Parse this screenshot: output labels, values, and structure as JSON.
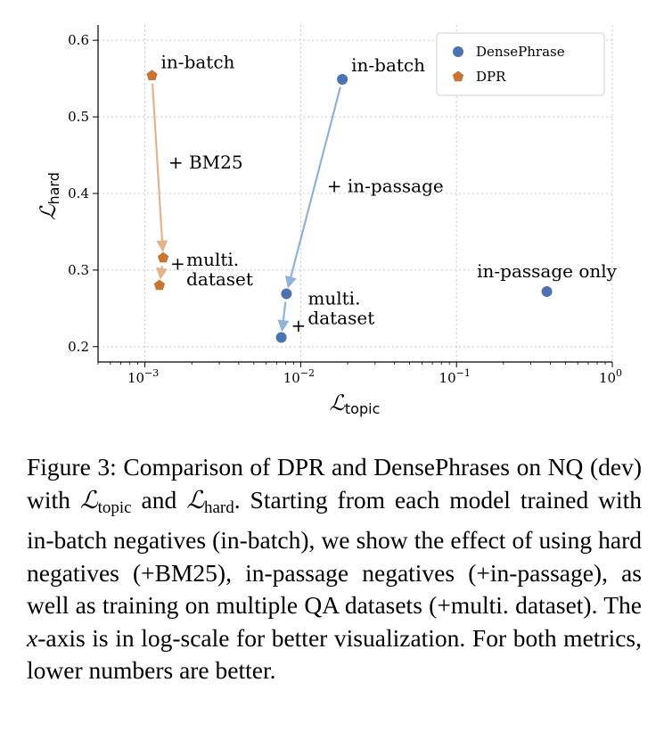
{
  "chart_data": {
    "type": "scatter",
    "xscale": "log",
    "xlim": [
      0.0005,
      1.0
    ],
    "ylim": [
      0.18,
      0.62
    ],
    "x_ticks": [
      {
        "value": 0.001,
        "base": "10",
        "exp": "−3"
      },
      {
        "value": 0.01,
        "base": "10",
        "exp": "−2"
      },
      {
        "value": 0.1,
        "base": "10",
        "exp": "−1"
      },
      {
        "value": 1.0,
        "base": "10",
        "exp": "0"
      }
    ],
    "y_ticks": [
      "0.2",
      "0.3",
      "0.4",
      "0.5",
      "0.6"
    ],
    "xlabel": {
      "symbol": "ℒ",
      "sub": "topic"
    },
    "ylabel": {
      "symbol": "ℒ",
      "sub": "hard"
    },
    "grid": true,
    "legend_position": "top-right",
    "series": [
      {
        "name": "DensePhrase",
        "marker": "circle",
        "color": "#4C72B0",
        "points": [
          {
            "x": 0.0185,
            "y": 0.549,
            "label": "in-batch"
          },
          {
            "x": 0.0081,
            "y": 0.269,
            "label": "multi.|dataset"
          },
          {
            "x": 0.0075,
            "y": 0.212,
            "label": ""
          },
          {
            "x": 0.38,
            "y": 0.272,
            "label": "in-passage only"
          }
        ],
        "arrows": [
          {
            "from": 0,
            "to": 1,
            "label": "+ in-passage"
          },
          {
            "from": 1,
            "to": 2,
            "label": "+"
          }
        ]
      },
      {
        "name": "DPR",
        "marker": "pentagon",
        "color": "#C87533",
        "points": [
          {
            "x": 0.00111,
            "y": 0.554,
            "label": "in-batch"
          },
          {
            "x": 0.00131,
            "y": 0.316,
            "label": "multi.|dataset"
          },
          {
            "x": 0.00124,
            "y": 0.28,
            "label": ""
          }
        ],
        "arrows": [
          {
            "from": 0,
            "to": 1,
            "label": "+ BM25"
          },
          {
            "from": 1,
            "to": 2,
            "label": "+"
          }
        ]
      }
    ]
  },
  "caption": {
    "label": "Figure 3:",
    "text1": "Comparison of DPR and DensePhrases on NQ (dev) with",
    "lsym": "ℒ",
    "sub_topic": "topic",
    "and": "and",
    "sub_hard": "hard",
    "text2": ". Starting from each model trained with in-batch negatives (in-batch), we show the effect of using hard negatives (+BM25), in-passage negatives (+in-passage), as well as training on multiple QA datasets (+multi. dataset). The",
    "xvar": "x",
    "text3": "-axis is in log-scale for better visualization. For both metrics, lower numbers are better."
  }
}
